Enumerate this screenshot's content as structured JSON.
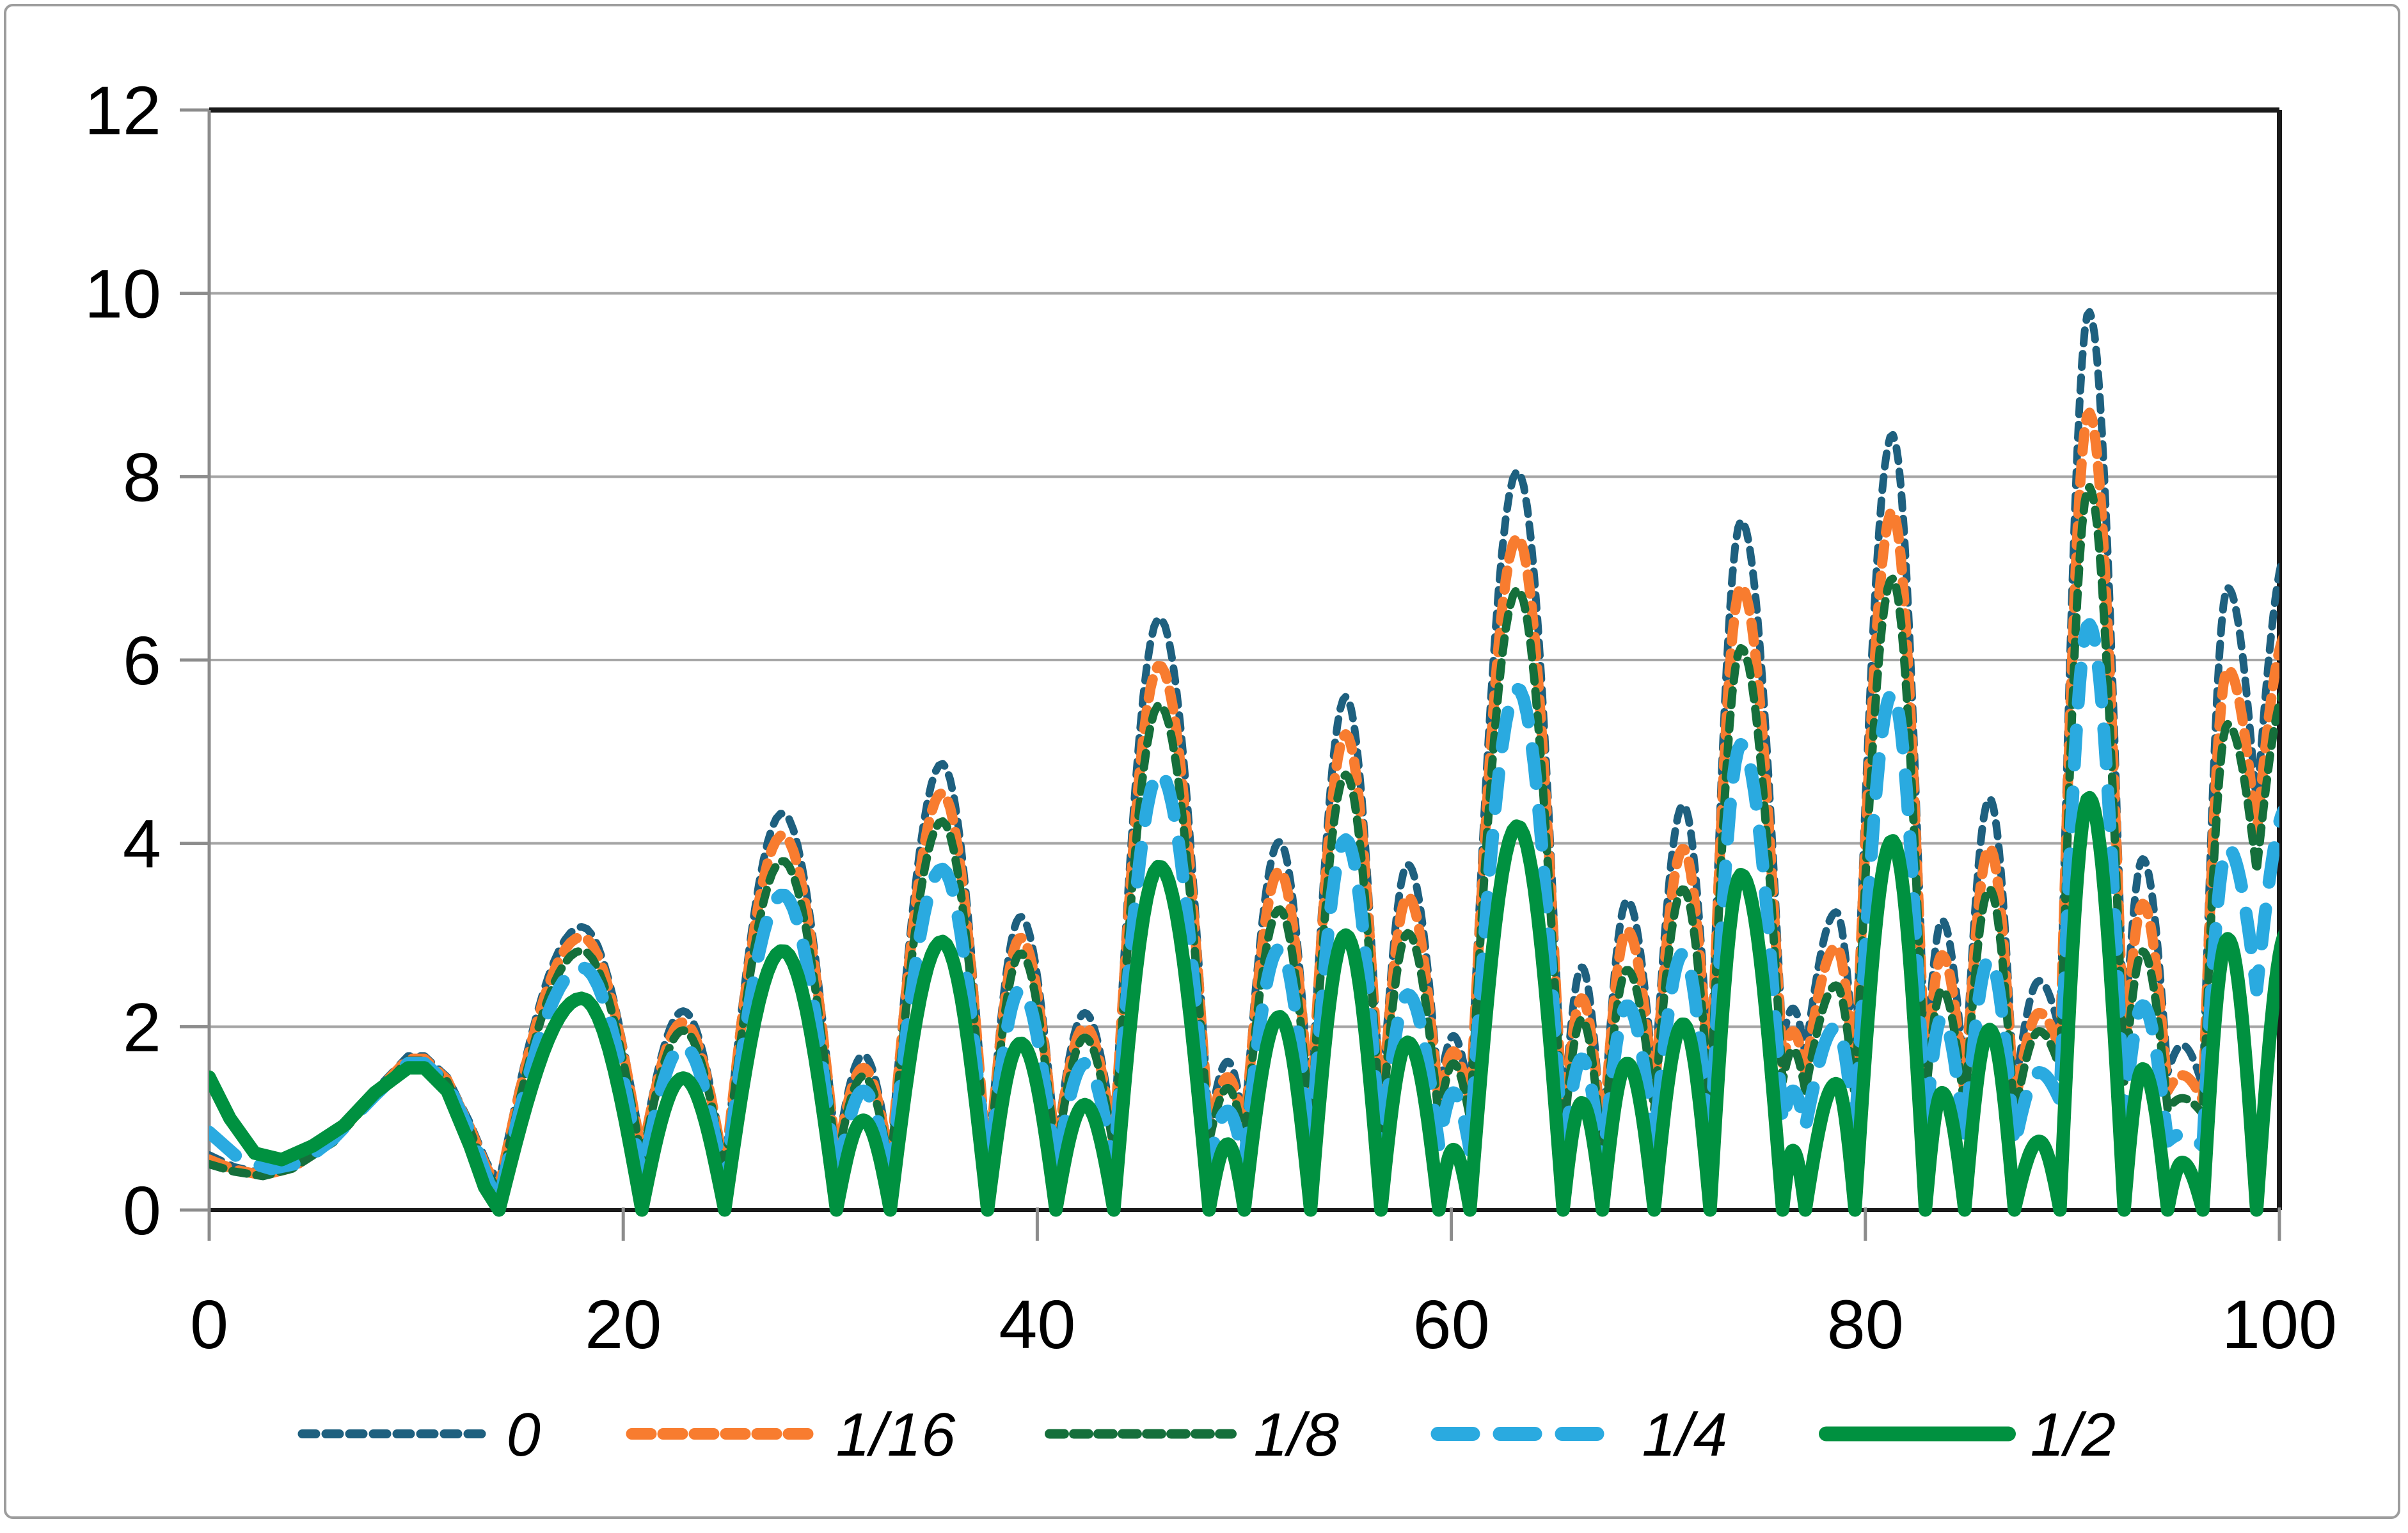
{
  "chart_data": {
    "type": "line",
    "title": "",
    "xlabel": "",
    "ylabel": "",
    "xlim": [
      0,
      100
    ],
    "ylim": [
      0,
      12
    ],
    "xticks": [
      0,
      20,
      40,
      60,
      80,
      100
    ],
    "yticks": [
      0,
      2,
      4,
      6,
      8,
      10,
      12
    ],
    "grid": "horizontal",
    "legend_position": "bottom",
    "colors": {
      "gridline": "#a6a6a6",
      "axis_gray": "#8c8c8c",
      "axis_dark": "#1a1a1a",
      "frame_border": "#9d9d9d",
      "label_text": "#000000"
    },
    "series": [
      {
        "name": "0",
        "color": "#1e607f",
        "width": 12,
        "dash": "21 16"
      },
      {
        "name": "1/16",
        "color": "#f87c2f",
        "width": 16,
        "dash": "30 19"
      },
      {
        "name": "1/8",
        "color": "#156f3b",
        "width": 13,
        "dash": "23 15"
      },
      {
        "name": "1/4",
        "color": "#2aaae0",
        "width": 20,
        "dash": "55 42"
      },
      {
        "name": "1/2",
        "color": "#009140",
        "width": 21,
        "dash": ""
      }
    ],
    "heads": [
      [
        [
          0,
          0.6
        ],
        [
          1.2,
          0.47
        ],
        [
          2.6,
          0.4
        ],
        [
          4,
          0.48
        ],
        [
          6,
          0.78
        ],
        [
          8,
          1.3
        ],
        [
          9.6,
          1.68
        ],
        [
          10.4,
          1.68
        ],
        [
          11.5,
          1.45
        ],
        [
          12.6,
          0.95
        ],
        [
          13.4,
          0.52
        ],
        [
          14,
          0.3
        ]
      ],
      [
        [
          0,
          0.55
        ],
        [
          1.2,
          0.44
        ],
        [
          2.6,
          0.38
        ],
        [
          4,
          0.46
        ],
        [
          6,
          0.76
        ],
        [
          8,
          1.27
        ],
        [
          9.6,
          1.65
        ],
        [
          10.4,
          1.65
        ],
        [
          11.5,
          1.42
        ],
        [
          12.6,
          0.9
        ],
        [
          13.4,
          0.46
        ],
        [
          14,
          0.25
        ]
      ],
      [
        [
          0,
          0.5
        ],
        [
          1.2,
          0.42
        ],
        [
          2.6,
          0.37
        ],
        [
          4,
          0.45
        ],
        [
          6,
          0.74
        ],
        [
          8,
          1.25
        ],
        [
          9.6,
          1.63
        ],
        [
          10.4,
          1.63
        ],
        [
          11.5,
          1.4
        ],
        [
          12.6,
          0.87
        ],
        [
          13.4,
          0.42
        ],
        [
          14,
          0.2
        ]
      ],
      [
        [
          0,
          0.85
        ],
        [
          1.5,
          0.55
        ],
        [
          3,
          0.45
        ],
        [
          4.5,
          0.52
        ],
        [
          6,
          0.78
        ],
        [
          8,
          1.25
        ],
        [
          9.6,
          1.6
        ],
        [
          10.4,
          1.6
        ],
        [
          11.5,
          1.38
        ],
        [
          12.7,
          0.8
        ],
        [
          13.5,
          0.3
        ],
        [
          14,
          0.1
        ]
      ],
      [
        [
          0,
          1.45
        ],
        [
          1,
          1.0
        ],
        [
          2.2,
          0.62
        ],
        [
          3.5,
          0.55
        ],
        [
          5,
          0.7
        ],
        [
          6.5,
          0.92
        ],
        [
          8,
          1.28
        ],
        [
          9.6,
          1.55
        ],
        [
          10.4,
          1.55
        ],
        [
          11.5,
          1.3
        ],
        [
          12.6,
          0.7
        ],
        [
          13.3,
          0.25
        ],
        [
          14,
          0.0
        ]
      ]
    ],
    "zeros": [
      14.0,
      20.9,
      24.9,
      30.3,
      32.9,
      37.6,
      40.9,
      43.7,
      48.3,
      50.0,
      53.2,
      56.6,
      59.4,
      60.9,
      65.4,
      67.3,
      69.8,
      72.5,
      76.0,
      77.1,
      79.5,
      82.9,
      84.8,
      87.2,
      89.4,
      92.5,
      94.6,
      96.3,
      98.9,
      101.5
    ],
    "floors": [
      [
        0.3,
        0.25,
        0.2,
        0.1
      ],
      [
        0.65,
        0.6,
        0.55,
        0.35
      ],
      [
        0.45,
        0.42,
        0.4,
        0.25
      ],
      [
        0.6,
        0.55,
        0.5,
        0.3
      ],
      [
        0.55,
        0.5,
        0.45,
        0.3
      ],
      [
        0.45,
        0.4,
        0.36,
        0.25
      ],
      [
        0.7,
        0.62,
        0.56,
        0.4
      ],
      [
        0.8,
        0.72,
        0.65,
        0.45
      ],
      [
        0.9,
        0.82,
        0.75,
        0.5
      ],
      [
        0.9,
        0.82,
        0.75,
        0.5
      ],
      [
        1.1,
        1.0,
        0.9,
        0.6
      ],
      [
        1.05,
        0.95,
        0.85,
        0.55
      ],
      [
        1.3,
        1.15,
        1.0,
        0.7
      ],
      [
        1.2,
        1.1,
        1.0,
        0.65
      ],
      [
        0.95,
        0.85,
        0.75,
        0.5
      ],
      [
        0.75,
        0.7,
        0.6,
        0.4
      ],
      [
        1.35,
        1.2,
        1.1,
        0.7
      ],
      [
        1.35,
        1.25,
        1.1,
        0.6
      ],
      [
        1.85,
        1.6,
        1.4,
        0.95
      ],
      [
        1.7,
        1.5,
        1.3,
        0.9
      ],
      [
        1.5,
        1.35,
        1.2,
        0.8
      ],
      [
        1.5,
        1.35,
        1.2,
        0.85
      ],
      [
        1.4,
        1.25,
        1.1,
        0.75
      ],
      [
        1.25,
        1.1,
        1.0,
        0.7
      ],
      [
        1.95,
        1.75,
        1.55,
        1.2
      ],
      [
        1.8,
        1.6,
        1.4,
        1.0
      ],
      [
        1.5,
        1.3,
        1.1,
        0.75
      ],
      [
        1.35,
        1.2,
        1.05,
        0.7
      ],
      [
        4.4,
        4.1,
        3.7,
        2.4
      ],
      [
        0,
        0,
        0,
        0
      ]
    ],
    "peaks": [
      {
        "x": 18.0,
        "h": [
          3.09,
          2.98,
          2.83,
          2.65,
          2.31
        ]
      },
      {
        "x": 22.9,
        "h": [
          2.17,
          2.05,
          1.96,
          1.79,
          1.44
        ]
      },
      {
        "x": 27.7,
        "h": [
          4.33,
          4.09,
          3.81,
          3.44,
          2.83
        ]
      },
      {
        "x": 31.6,
        "h": [
          1.69,
          1.55,
          1.46,
          1.3,
          0.98
        ]
      },
      {
        "x": 35.4,
        "h": [
          4.87,
          4.55,
          4.24,
          3.72,
          2.93
        ]
      },
      {
        "x": 39.2,
        "h": [
          3.2,
          2.97,
          2.8,
          2.41,
          1.82
        ]
      },
      {
        "x": 42.3,
        "h": [
          2.15,
          2.0,
          1.88,
          1.6,
          1.15
        ]
      },
      {
        "x": 45.9,
        "h": [
          6.46,
          5.94,
          5.51,
          4.77,
          3.75
        ]
      },
      {
        "x": 49.2,
        "h": [
          1.62,
          1.45,
          1.33,
          1.08,
          0.72
        ]
      },
      {
        "x": 51.7,
        "h": [
          4.02,
          3.7,
          3.28,
          2.85,
          2.11
        ]
      },
      {
        "x": 54.9,
        "h": [
          5.6,
          5.19,
          4.75,
          4.04,
          3.0
        ]
      },
      {
        "x": 57.9,
        "h": [
          3.77,
          3.42,
          3.02,
          2.35,
          1.83
        ]
      },
      {
        "x": 60.1,
        "h": [
          1.9,
          1.73,
          1.6,
          1.28,
          0.66
        ]
      },
      {
        "x": 63.2,
        "h": [
          8.06,
          7.34,
          6.77,
          5.69,
          4.19
        ]
      },
      {
        "x": 66.3,
        "h": [
          2.65,
          2.31,
          2.08,
          1.65,
          1.17
        ]
      },
      {
        "x": 68.5,
        "h": [
          3.38,
          3.05,
          2.62,
          2.23,
          1.6
        ]
      },
      {
        "x": 71.2,
        "h": [
          4.42,
          3.94,
          3.5,
          2.8,
          2.03
        ]
      },
      {
        "x": 74.0,
        "h": [
          7.52,
          6.8,
          6.13,
          5.08,
          3.66
        ]
      },
      {
        "x": 76.5,
        "h": [
          2.2,
          1.95,
          1.75,
          1.3,
          0.65
        ]
      },
      {
        "x": 78.6,
        "h": [
          3.25,
          2.87,
          2.45,
          2.0,
          1.38
        ]
      },
      {
        "x": 81.3,
        "h": [
          8.46,
          7.62,
          6.89,
          5.64,
          4.03
        ]
      },
      {
        "x": 83.7,
        "h": [
          3.16,
          2.78,
          2.4,
          2.1,
          1.28
        ]
      },
      {
        "x": 86.0,
        "h": [
          4.49,
          3.95,
          3.5,
          2.74,
          1.97
        ]
      },
      {
        "x": 88.4,
        "h": [
          2.5,
          2.15,
          1.95,
          1.5,
          0.75
        ]
      },
      {
        "x": 90.8,
        "h": [
          9.8,
          8.7,
          7.89,
          6.39,
          4.5
        ]
      },
      {
        "x": 93.4,
        "h": [
          3.83,
          3.34,
          2.82,
          2.23,
          1.54
        ]
      },
      {
        "x": 95.3,
        "h": [
          1.8,
          1.47,
          1.22,
          0.83,
          0.52
        ]
      },
      {
        "x": 97.5,
        "h": [
          6.79,
          5.9,
          5.3,
          3.95,
          2.96
        ]
      },
      {
        "x": 100.4,
        "h": [
          7.2,
          6.3,
          5.7,
          4.4,
          3.05
        ]
      }
    ],
    "legend": {
      "labels": [
        "0",
        "1/16",
        "1/8",
        "1/4",
        "1/2"
      ],
      "italic": true
    }
  }
}
